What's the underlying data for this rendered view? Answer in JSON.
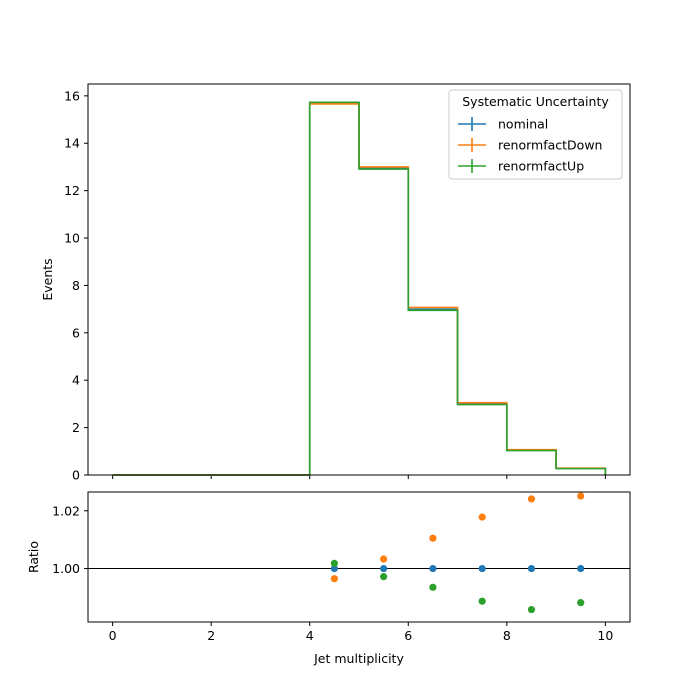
{
  "chart_data": [
    {
      "type": "step",
      "title": "",
      "xlabel": "",
      "ylabel": "Events",
      "xlim": [
        -0.5,
        10.5
      ],
      "ylim": [
        0,
        16.5
      ],
      "xticks": [
        0,
        2,
        4,
        6,
        8,
        10
      ],
      "yticks": [
        0,
        2,
        4,
        6,
        8,
        10,
        12,
        14,
        16
      ],
      "bin_edges": [
        0,
        1,
        2,
        3,
        4,
        5,
        6,
        7,
        8,
        9,
        10
      ],
      "legend": {
        "title": "Systematic Uncertainty",
        "placement": "top-right"
      },
      "series": [
        {
          "name": "nominal",
          "color": "#1f77b4",
          "values": [
            0,
            0,
            0,
            0,
            15.7,
            12.95,
            7.0,
            3.0,
            1.05,
            0.28
          ]
        },
        {
          "name": "renormfactDown",
          "color": "#ff7f0e",
          "values": [
            0,
            0,
            0,
            0,
            15.66,
            13.0,
            7.07,
            3.05,
            1.07,
            0.29
          ]
        },
        {
          "name": "renormfactUp",
          "color": "#2ca02c",
          "values": [
            0,
            0,
            0,
            0,
            15.73,
            12.91,
            6.95,
            2.97,
            1.03,
            0.27
          ]
        }
      ]
    },
    {
      "type": "scatter",
      "xlabel": "Jet multiplicity",
      "ylabel": "Ratio",
      "xlim": [
        -0.5,
        10.5
      ],
      "ylim": [
        0.9815,
        1.0265
      ],
      "xticks": [
        0,
        2,
        4,
        6,
        8,
        10
      ],
      "yticks": [
        1.0,
        1.02
      ],
      "ytick_labels": [
        "1.00",
        "1.02"
      ],
      "reference_line": 1.0,
      "x": [
        4.5,
        5.5,
        6.5,
        7.5,
        8.5,
        9.5
      ],
      "series": [
        {
          "name": "nominal",
          "color": "#1f77b4",
          "values": [
            1.0,
            1.0,
            1.0,
            1.0,
            1.0,
            1.0
          ]
        },
        {
          "name": "renormfactDown",
          "color": "#ff7f0e",
          "values": [
            0.9965,
            1.0033,
            1.0105,
            1.0178,
            1.0241,
            1.0251
          ]
        },
        {
          "name": "renormfactUp",
          "color": "#2ca02c",
          "values": [
            1.0018,
            0.9972,
            0.9935,
            0.9887,
            0.9858,
            0.9882
          ]
        }
      ]
    }
  ]
}
